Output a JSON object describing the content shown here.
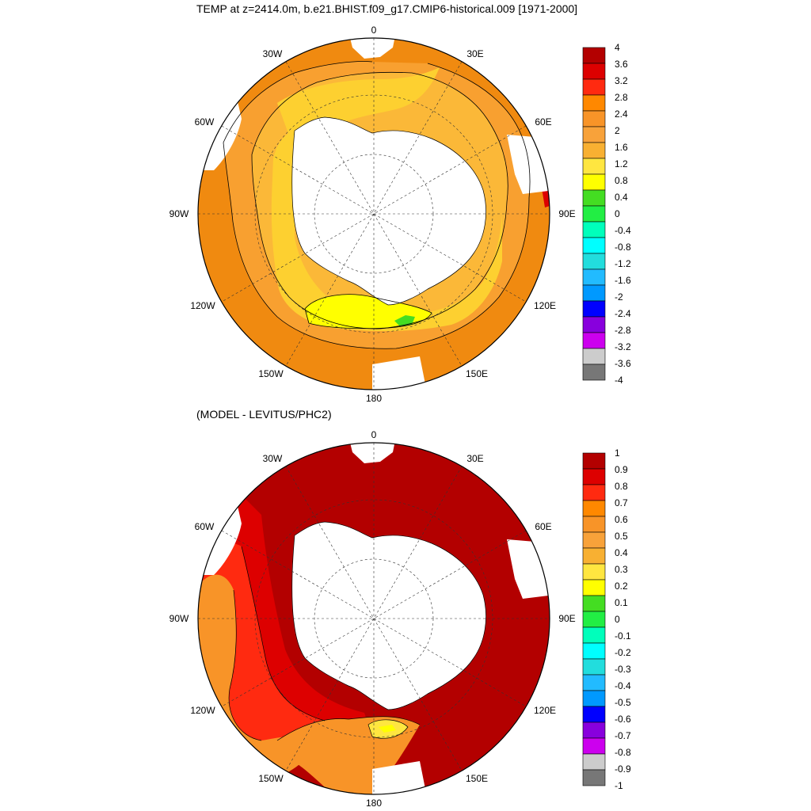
{
  "titles": {
    "top": "TEMP at z=2414.0m, b.e21.BHIST.f09_g17.CMIP6-historical.009 [1971-2000]",
    "bottom": "(MODEL - LEVITUS/PHC2)"
  },
  "lon_labels": {
    "n0": "0",
    "n30E": "30E",
    "n60E": "60E",
    "n90E": "90E",
    "n120E": "120E",
    "n150E": "150E",
    "n180": "180",
    "n150W": "150W",
    "n120W": "120W",
    "n90W": "90W",
    "n60W": "60W",
    "n30W": "30W"
  },
  "colorbar_top": {
    "labels": [
      "4",
      "3.6",
      "3.2",
      "2.8",
      "2.4",
      "2",
      "1.6",
      "1.2",
      "0.8",
      "0.4",
      "0",
      "-0.4",
      "-0.8",
      "-1.2",
      "-1.6",
      "-2",
      "-2.4",
      "-2.8",
      "-3.2",
      "-3.6",
      "-4"
    ],
    "colors": [
      "#b30000",
      "#dd0000",
      "#ff2a10",
      "#ff8800",
      "#f89428",
      "#f8a23a",
      "#f8b032",
      "#ffe640",
      "#ffff00",
      "#44dd22",
      "#22ee44",
      "#00ffbb",
      "#00ffff",
      "#22dddd",
      "#22bbff",
      "#0099ff",
      "#0000ff",
      "#8800dd",
      "#cc00ee",
      "#cccccc",
      "#777777"
    ]
  },
  "colorbar_bottom": {
    "labels": [
      "1",
      "0.9",
      "0.8",
      "0.7",
      "0.6",
      "0.5",
      "0.4",
      "0.3",
      "0.2",
      "0.1",
      "0",
      "-0.1",
      "-0.2",
      "-0.3",
      "-0.4",
      "-0.5",
      "-0.6",
      "-0.7",
      "-0.8",
      "-0.9",
      "-1"
    ],
    "colors": [
      "#b30000",
      "#dd0000",
      "#ff2a10",
      "#ff8800",
      "#f89428",
      "#f8a23a",
      "#f8b032",
      "#ffe640",
      "#ffff00",
      "#44dd22",
      "#22ee44",
      "#00ffbb",
      "#00ffff",
      "#22dddd",
      "#22bbff",
      "#0099ff",
      "#0000ff",
      "#8800dd",
      "#cc00ee",
      "#cccccc",
      "#777777"
    ]
  },
  "map_colors": {
    "top_outer": "#f08a10",
    "top_mid": "#f8a030",
    "top_inner": "#fbb838",
    "top_band": "#fdd030",
    "top_yellow": "#ffff00",
    "top_green": "#44dd22",
    "bottom_main": "#b30000",
    "bottom_red2": "#dd0000",
    "bottom_red3": "#ff2a10",
    "bottom_orange": "#f89428",
    "bottom_yellow": "#ffe640",
    "land": "#ffffff"
  }
}
